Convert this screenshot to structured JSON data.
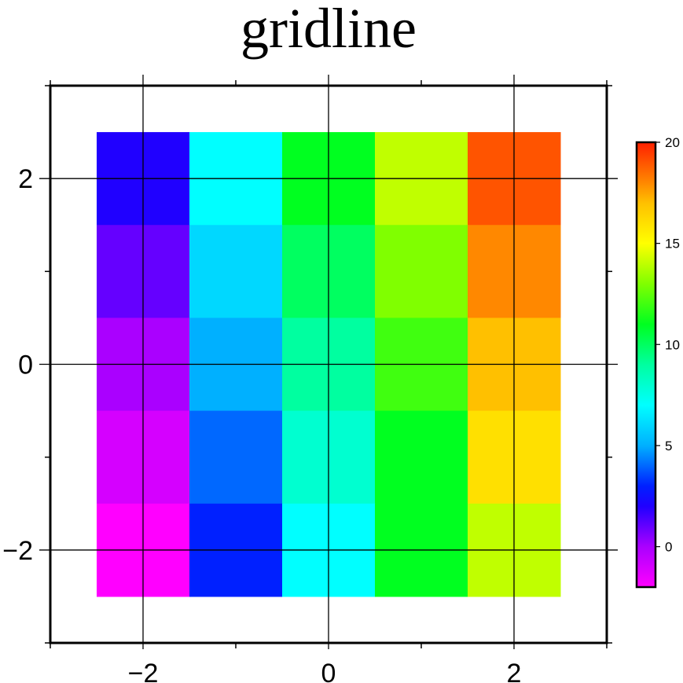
{
  "chart_data": {
    "type": "heatmap",
    "title": "gridline",
    "xlabel": "",
    "ylabel": "",
    "xlim": [
      -3,
      3
    ],
    "ylim": [
      -3,
      3
    ],
    "grid": true,
    "x_major_ticks": [
      -2,
      0,
      2
    ],
    "y_major_ticks": [
      -2,
      0,
      2
    ],
    "x_minor_ticks": [
      -3,
      -1,
      1,
      3
    ],
    "y_minor_ticks": [
      -3,
      -1,
      1,
      3
    ],
    "x_tick_labels": [
      "−2",
      "0",
      "2"
    ],
    "y_tick_labels": [
      "−2",
      "0",
      "2"
    ],
    "x_centers": [
      -2,
      -1,
      0,
      1,
      2
    ],
    "y_centers": [
      2,
      1,
      0,
      -1,
      -2
    ],
    "cell_size": 1,
    "values": [
      [
        2,
        7,
        11,
        14,
        19
      ],
      [
        1,
        6,
        10,
        13,
        18
      ],
      [
        0,
        5,
        9,
        12,
        17
      ],
      [
        -1,
        4,
        8,
        11,
        16
      ],
      [
        -2,
        3,
        7,
        11,
        14
      ]
    ],
    "colorbar": {
      "range": [
        -2,
        20
      ],
      "ticks": [
        0,
        5,
        10,
        15,
        20
      ],
      "tick_labels": [
        "0",
        "5",
        "10",
        "15",
        "20"
      ],
      "colormap": "rainbow",
      "stops": [
        {
          "v": -2,
          "color": "#ff00ff"
        },
        {
          "v": 0,
          "color": "#aa00ff"
        },
        {
          "v": 2,
          "color": "#2000ff"
        },
        {
          "v": 3,
          "color": "#0020ff"
        },
        {
          "v": 5,
          "color": "#00b0ff"
        },
        {
          "v": 7,
          "color": "#00ffff"
        },
        {
          "v": 9,
          "color": "#00ffa0"
        },
        {
          "v": 11,
          "color": "#00ff20"
        },
        {
          "v": 13,
          "color": "#80ff00"
        },
        {
          "v": 15,
          "color": "#ffff00"
        },
        {
          "v": 17,
          "color": "#ffc000"
        },
        {
          "v": 18,
          "color": "#ff8800"
        },
        {
          "v": 20,
          "color": "#ff2000"
        }
      ]
    }
  }
}
